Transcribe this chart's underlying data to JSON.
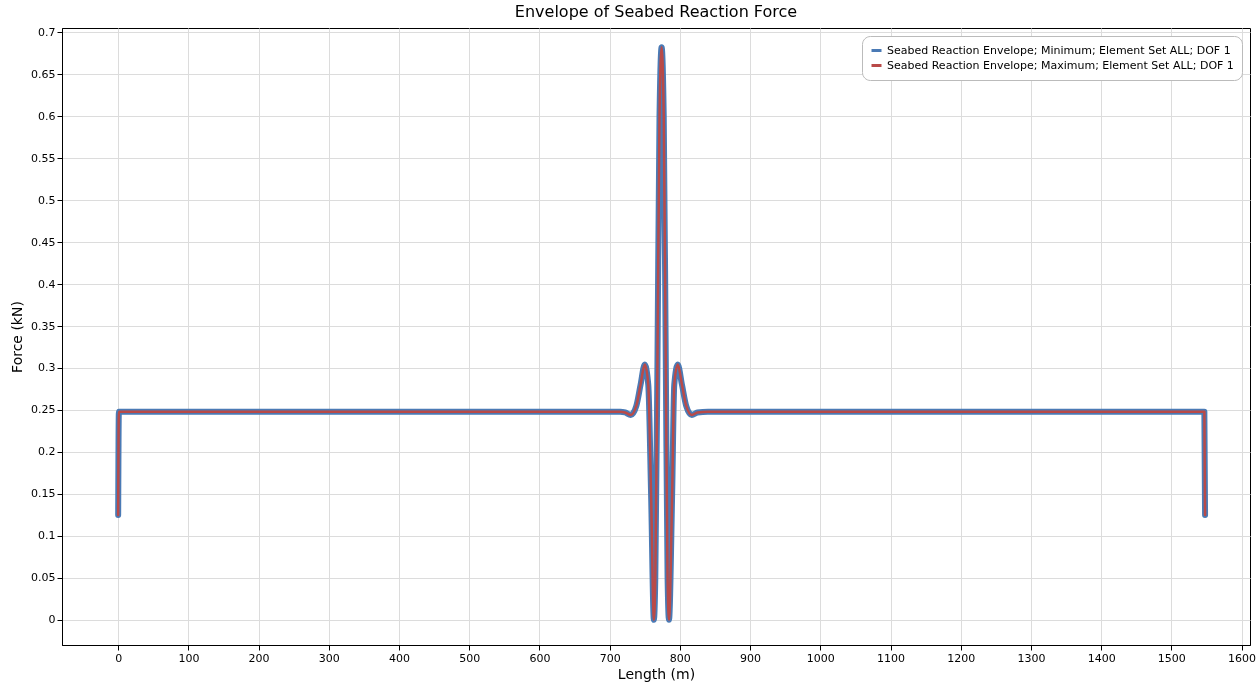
{
  "chart_data": {
    "type": "line",
    "title": "Envelope of Seabed Reaction Force",
    "xlabel": "Length (m)",
    "ylabel": "Force (kN)",
    "xlim": [
      -80,
      1612
    ],
    "ylim": [
      -0.03,
      0.705
    ],
    "xticks": [
      0,
      100,
      200,
      300,
      400,
      500,
      600,
      700,
      800,
      900,
      1000,
      1100,
      1200,
      1300,
      1400,
      1500,
      1600
    ],
    "yticks": [
      0,
      0.05,
      0.1,
      0.15,
      0.2,
      0.25,
      0.3,
      0.35,
      0.4,
      0.45,
      0.5,
      0.55,
      0.6,
      0.65,
      0.7
    ],
    "grid": true,
    "legend": "top right",
    "marker": "none",
    "line_style": "solid",
    "series": [
      {
        "name": "Seabed Reaction Envelope; Minimum; Element Set ALL; DOF 1",
        "color": "#4a7ab5",
        "x": [
          0,
          1,
          700,
          715,
          722,
          730,
          738,
          744,
          750,
          755,
          759,
          763,
          765,
          768,
          771,
          774,
          777,
          780,
          782.5,
          784.5,
          789,
          792,
          797,
          803,
          809,
          817,
          825,
          840,
          1547,
          1548
        ],
        "values": [
          0.125,
          0.248,
          0.248,
          0.248,
          0.247,
          0.244,
          0.255,
          0.28,
          0.304,
          0.28,
          0.15,
          0,
          0.05,
          0.3,
          0.6,
          0.682,
          0.6,
          0.3,
          0.05,
          0,
          0.15,
          0.28,
          0.304,
          0.28,
          0.255,
          0.244,
          0.247,
          0.248,
          0.248,
          0.125
        ]
      },
      {
        "name": "Seabed Reaction Envelope; Maximum; Element Set ALL; DOF 1",
        "color": "#b94a48",
        "x": [
          0,
          1,
          700,
          715,
          722,
          730,
          738,
          744,
          750,
          755,
          759,
          763,
          765,
          768,
          771,
          774,
          777,
          780,
          782.5,
          784.5,
          789,
          792,
          797,
          803,
          809,
          817,
          825,
          840,
          1547,
          1548
        ],
        "values": [
          0.125,
          0.248,
          0.248,
          0.248,
          0.247,
          0.244,
          0.255,
          0.28,
          0.304,
          0.28,
          0.15,
          0,
          0.05,
          0.3,
          0.6,
          0.682,
          0.6,
          0.3,
          0.05,
          0,
          0.15,
          0.28,
          0.304,
          0.28,
          0.255,
          0.244,
          0.247,
          0.248,
          0.248,
          0.125
        ]
      }
    ]
  }
}
